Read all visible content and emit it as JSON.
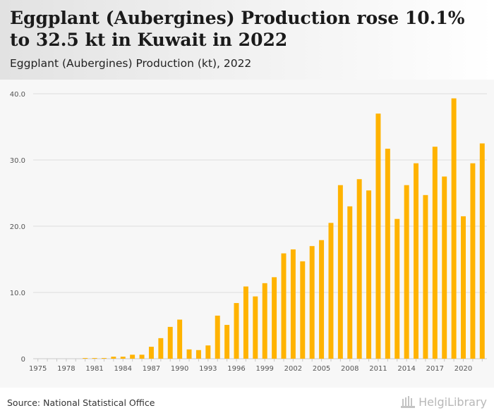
{
  "header": {
    "title": "Eggplant (Aubergines) Production rose 10.1% to 32.5 kt in Kuwait in 2022",
    "subtitle": "Eggplant (Aubergines) Production (kt), 2022"
  },
  "footer": {
    "source": "Source: National Statistical Office",
    "brand": "HelgiLibrary"
  },
  "colors": {
    "bar": "#ffb300",
    "grid": "#dddddd",
    "axis_text": "#555555"
  },
  "chart_data": {
    "type": "bar",
    "categories": [
      "1975",
      "1976",
      "1977",
      "1978",
      "1979",
      "1980",
      "1981",
      "1982",
      "1983",
      "1984",
      "1985",
      "1986",
      "1987",
      "1988",
      "1989",
      "1990",
      "1991",
      "1992",
      "1993",
      "1994",
      "1995",
      "1996",
      "1997",
      "1998",
      "1999",
      "2000",
      "2001",
      "2002",
      "2003",
      "2004",
      "2005",
      "2006",
      "2007",
      "2008",
      "2009",
      "2010",
      "2011",
      "2012",
      "2013",
      "2014",
      "2015",
      "2016",
      "2017",
      "2018",
      "2019",
      "2020",
      "2021",
      "2022"
    ],
    "values": [
      0,
      0,
      0,
      0,
      0,
      0.1,
      0.1,
      0.1,
      0.3,
      0.3,
      0.6,
      0.6,
      1.8,
      3.1,
      4.8,
      5.9,
      1.4,
      1.3,
      2.0,
      6.5,
      5.1,
      8.4,
      10.9,
      9.4,
      11.4,
      12.3,
      15.9,
      16.5,
      14.7,
      17.0,
      17.9,
      20.5,
      26.2,
      23.0,
      27.1,
      25.4,
      37.0,
      31.7,
      21.1,
      26.2,
      29.5,
      24.7,
      32.0,
      27.5,
      39.3,
      21.5,
      29.5,
      32.5
    ],
    "x_ticks": [
      "1975",
      "1978",
      "1981",
      "1984",
      "1987",
      "1990",
      "1993",
      "1996",
      "1999",
      "2002",
      "2005",
      "2008",
      "2011",
      "2014",
      "2017",
      "2020"
    ],
    "y_ticks": [
      "0",
      "10.0",
      "20.0",
      "30.0",
      "40.0"
    ],
    "ylim": [
      0,
      40
    ],
    "xlabel": "",
    "ylabel": "",
    "grid": true,
    "legend": "none"
  }
}
